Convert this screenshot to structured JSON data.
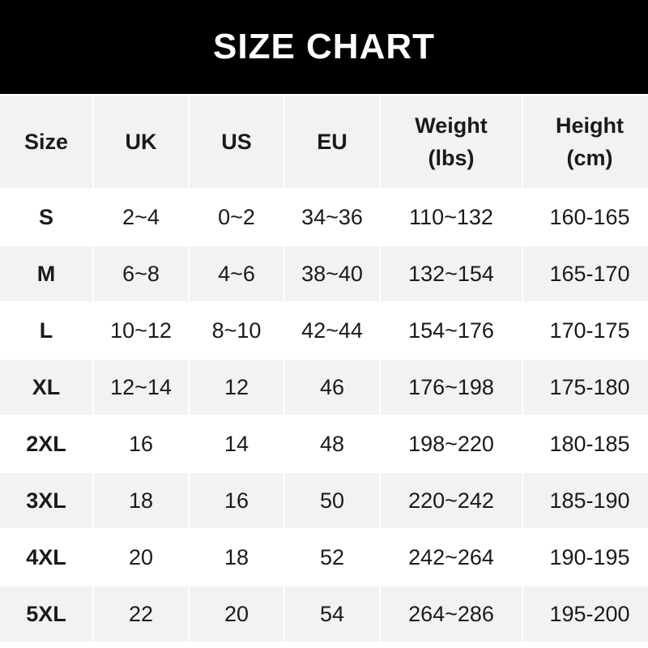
{
  "title": "SIZE CHART",
  "headers": [
    "Size",
    "UK",
    "US",
    "EU",
    "Weight\n(lbs)",
    "Height\n(cm)"
  ],
  "header_lines": [
    [
      "Size"
    ],
    [
      "UK"
    ],
    [
      "US"
    ],
    [
      "EU"
    ],
    [
      "Weight",
      "(lbs)"
    ],
    [
      "Height",
      "(cm)"
    ]
  ],
  "rows": [
    [
      "S",
      "2~4",
      "0~2",
      "34~36",
      "110~132",
      "160-165"
    ],
    [
      "M",
      "6~8",
      "4~6",
      "38~40",
      "132~154",
      "165-170"
    ],
    [
      "L",
      "10~12",
      "8~10",
      "42~44",
      "154~176",
      "170-175"
    ],
    [
      "XL",
      "12~14",
      "12",
      "46",
      "176~198",
      "175-180"
    ],
    [
      "2XL",
      "16",
      "14",
      "48",
      "198~220",
      "180-185"
    ],
    [
      "3XL",
      "18",
      "16",
      "50",
      "220~242",
      "185-190"
    ],
    [
      "4XL",
      "20",
      "18",
      "52",
      "242~264",
      "190-195"
    ],
    [
      "5XL",
      "22",
      "20",
      "54",
      "264~286",
      "195-200"
    ]
  ],
  "colors": {
    "banner": "#000000",
    "stripe": "#f2f2f2",
    "text": "#1a1a1a"
  }
}
